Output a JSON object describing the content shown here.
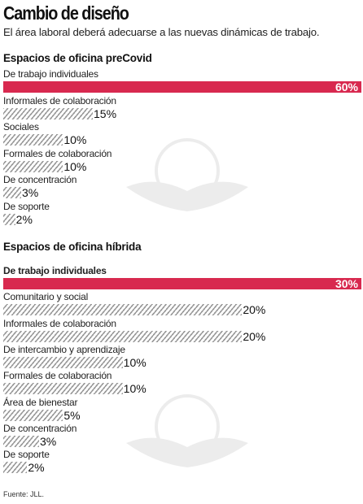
{
  "title": "Cambio de diseño",
  "subtitle": "El área laboral deberá adecuarse a las nuevas dinámicas de trabajo.",
  "source": "Fuente: JLL.",
  "colors": {
    "highlight": "#d8294f",
    "hatch": "#9a9a9a"
  },
  "chart_data": [
    {
      "type": "bar",
      "orientation": "horizontal",
      "title": "Espacios de oficina preCovid",
      "categories": [
        "De trabajo individuales",
        "Informales de colaboración",
        "Sociales",
        "Formales de colaboración",
        "De concentración",
        "De soporte"
      ],
      "values": [
        60,
        15,
        10,
        10,
        3,
        2
      ],
      "value_labels": [
        "60%",
        "15%",
        "10%",
        "10%",
        "3%",
        "2%"
      ],
      "unit": "%",
      "xlim": [
        0,
        60
      ],
      "highlight_index": 0
    },
    {
      "type": "bar",
      "orientation": "horizontal",
      "title": "Espacios de oficina híbrida",
      "categories": [
        "De trabajo individuales",
        "Comunitario y social",
        "Informales de colaboración",
        "De intercambio y aprendizaje",
        "Formales de colaboración",
        "Área de bienestar",
        "De concentración",
        "De soporte"
      ],
      "values": [
        30,
        20,
        20,
        10,
        10,
        5,
        3,
        2
      ],
      "value_labels": [
        "30%",
        "20%",
        "20%",
        "10%",
        "10%",
        "5%",
        "3%",
        "2%"
      ],
      "unit": "%",
      "xlim": [
        0,
        30
      ],
      "highlight_index": 0
    }
  ]
}
